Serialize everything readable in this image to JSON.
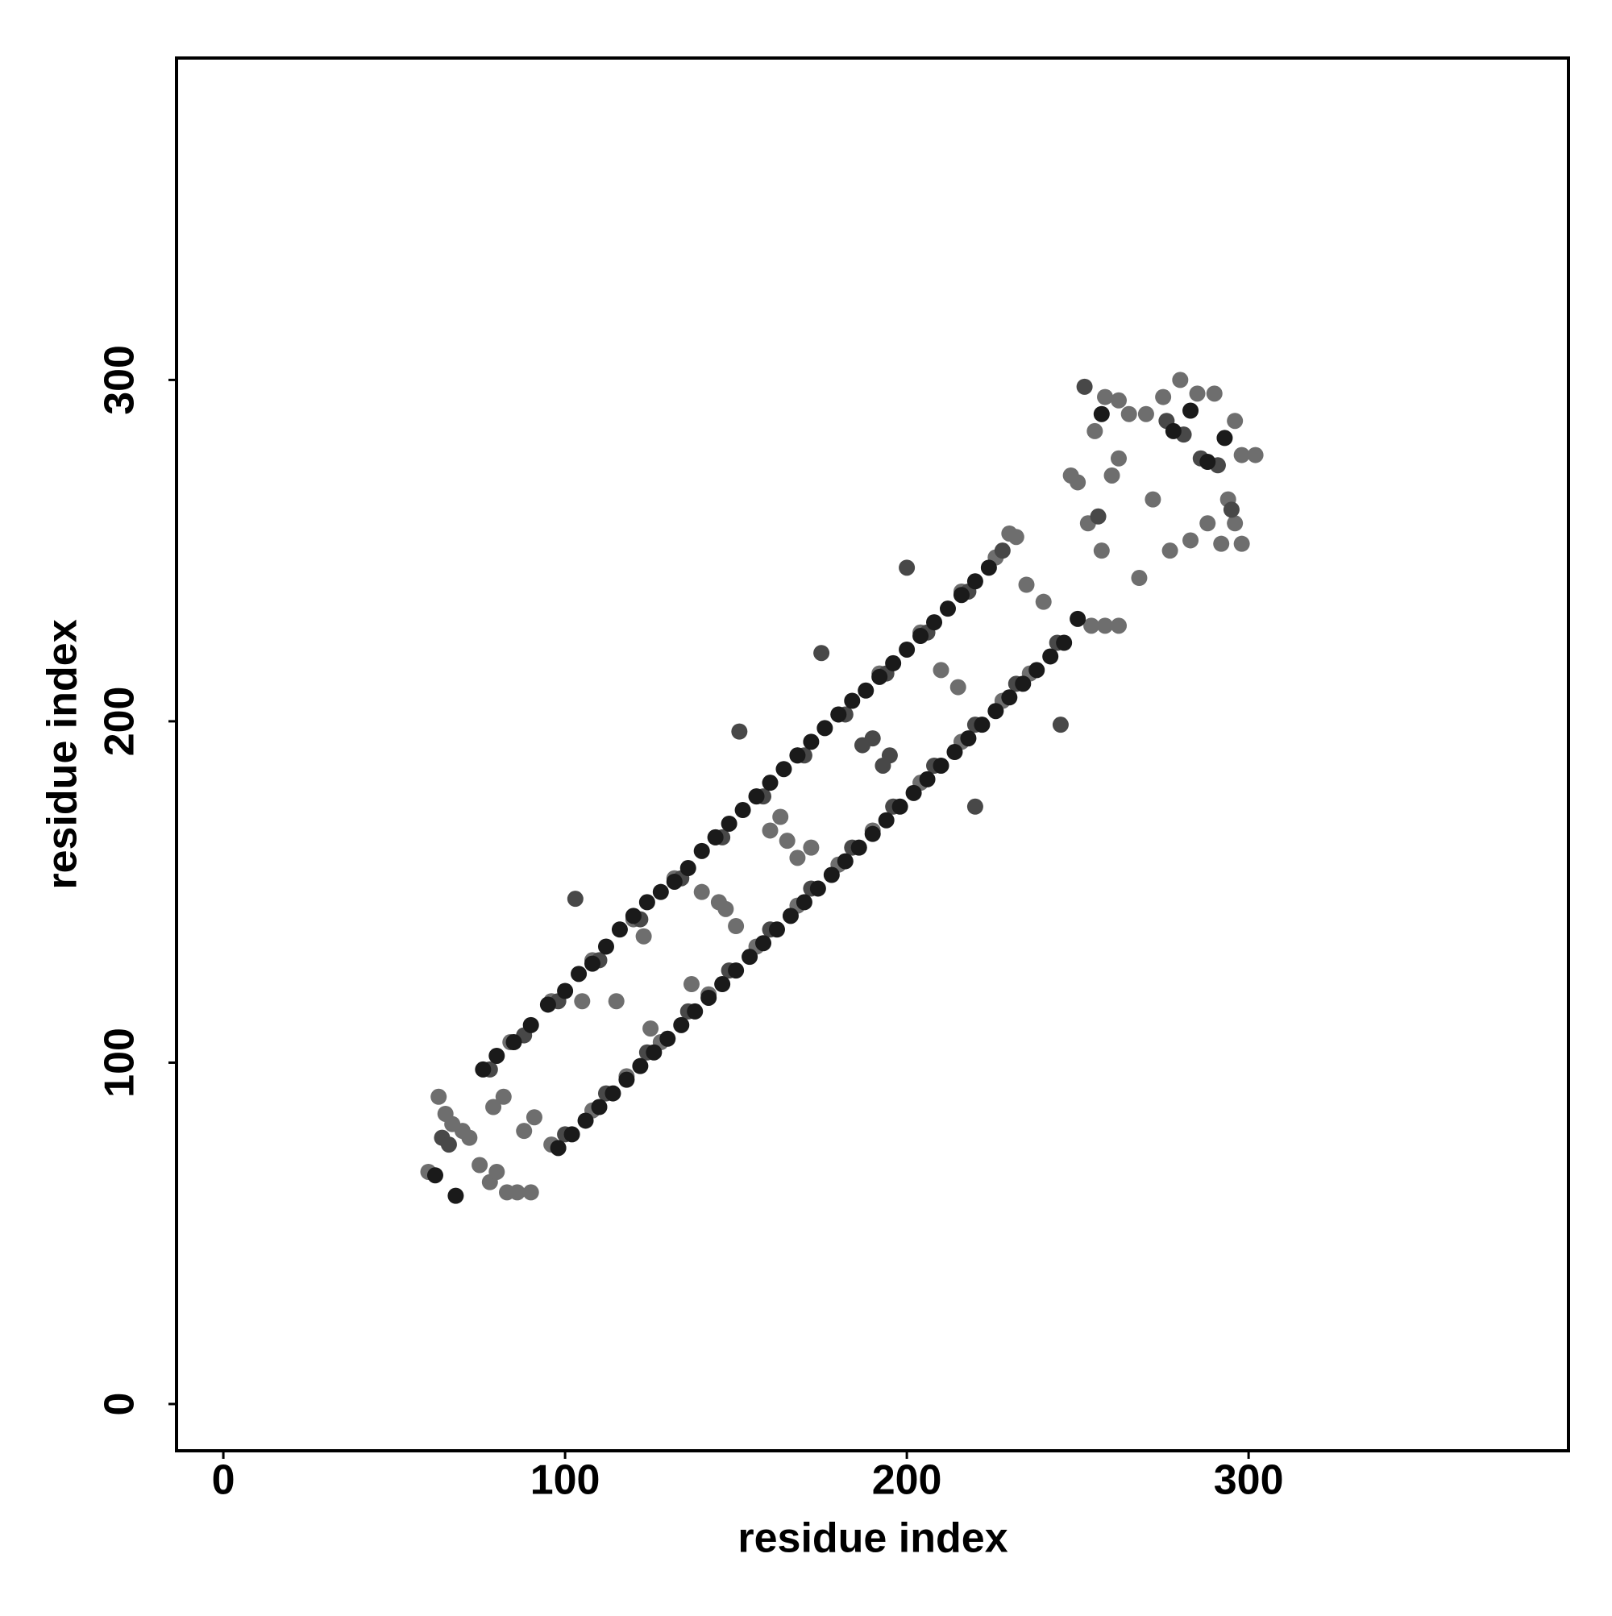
{
  "chart_data": {
    "type": "scatter",
    "xlabel": "residue index",
    "ylabel": "residue index",
    "xlim": [
      -13.7,
      393.6
    ],
    "ylim": [
      -13.7,
      394.3
    ],
    "xticks": [
      0,
      100,
      200,
      300
    ],
    "yticks": [
      0,
      100,
      200,
      300
    ],
    "series": [
      {
        "color": "#6e6e6e",
        "x": [
          60,
          63,
          65,
          67,
          70,
          72,
          75,
          78,
          80,
          83,
          86,
          90,
          82,
          79,
          88,
          91,
          96,
          105,
          115,
          125,
          123,
          137,
          140,
          150,
          145,
          147,
          160,
          168,
          165,
          163,
          172,
          210,
          215,
          230,
          240,
          235,
          250,
          255,
          258,
          262,
          265,
          270,
          275,
          280,
          285,
          290,
          296,
          298,
          302,
          294,
          296,
          298,
          292,
          288,
          272,
          268,
          277,
          283,
          260,
          262,
          248,
          253,
          257,
          262,
          258,
          254,
          84,
          96,
          108,
          120,
          132,
          144,
          156,
          168,
          180,
          192,
          204,
          216,
          226,
          232,
          108,
          118,
          128,
          142,
          156,
          168,
          180,
          190,
          204,
          216,
          228,
          236
        ],
        "values": [
          68,
          90,
          85,
          82,
          80,
          78,
          70,
          65,
          68,
          62,
          62,
          62,
          90,
          87,
          80,
          84,
          76,
          118,
          118,
          110,
          137,
          123,
          150,
          140,
          147,
          145,
          168,
          160,
          165,
          172,
          163,
          215,
          210,
          255,
          235,
          240,
          270,
          285,
          295,
          294,
          290,
          290,
          295,
          300,
          296,
          296,
          288,
          278,
          278,
          265,
          258,
          252,
          252,
          258,
          265,
          242,
          250,
          253,
          272,
          277,
          272,
          258,
          250,
          228,
          228,
          228,
          106,
          118,
          130,
          142,
          154,
          166,
          178,
          190,
          202,
          214,
          226,
          238,
          248,
          254,
          86,
          96,
          106,
          120,
          134,
          146,
          158,
          168,
          182,
          194,
          206,
          214
        ]
      },
      {
        "color": "#484848",
        "x": [
          78,
          88,
          98,
          110,
          122,
          134,
          146,
          158,
          170,
          182,
          194,
          206,
          218,
          228,
          100,
          112,
          124,
          136,
          148,
          160,
          172,
          184,
          196,
          208,
          220,
          232,
          244,
          103,
          151,
          200,
          245,
          175,
          220,
          190,
          195,
          193,
          187,
          64,
          66,
          276,
          281,
          286,
          291,
          295,
          252,
          256
        ],
        "values": [
          98,
          108,
          118,
          130,
          142,
          154,
          166,
          178,
          190,
          202,
          214,
          226,
          238,
          250,
          79,
          91,
          103,
          115,
          127,
          139,
          151,
          163,
          175,
          187,
          199,
          211,
          223,
          148,
          197,
          245,
          199,
          220,
          175,
          195,
          190,
          187,
          193,
          78,
          76,
          288,
          284,
          277,
          275,
          262,
          298,
          260
        ]
      },
      {
        "color": "#1a1a1a",
        "x": [
          76,
          80,
          85,
          90,
          95,
          100,
          104,
          108,
          112,
          116,
          120,
          124,
          128,
          132,
          136,
          140,
          144,
          148,
          152,
          156,
          160,
          164,
          168,
          172,
          176,
          180,
          184,
          188,
          192,
          196,
          200,
          204,
          208,
          212,
          216,
          220,
          224,
          98,
          102,
          106,
          110,
          114,
          118,
          122,
          126,
          130,
          134,
          138,
          142,
          146,
          150,
          154,
          158,
          162,
          166,
          170,
          174,
          178,
          182,
          186,
          190,
          194,
          198,
          202,
          206,
          210,
          214,
          218,
          222,
          226,
          230,
          234,
          238,
          242,
          246,
          62,
          68,
          278,
          283,
          288,
          293,
          257,
          250
        ],
        "values": [
          98,
          102,
          106,
          111,
          117,
          121,
          126,
          129,
          134,
          139,
          143,
          147,
          150,
          153,
          157,
          162,
          166,
          170,
          174,
          178,
          182,
          186,
          190,
          194,
          198,
          202,
          206,
          209,
          213,
          217,
          221,
          225,
          229,
          233,
          237,
          241,
          245,
          75,
          79,
          83,
          87,
          91,
          95,
          99,
          103,
          107,
          111,
          115,
          119,
          123,
          127,
          131,
          135,
          139,
          143,
          147,
          151,
          155,
          159,
          163,
          167,
          171,
          175,
          179,
          183,
          187,
          191,
          195,
          199,
          203,
          207,
          211,
          215,
          219,
          223,
          67,
          61,
          285,
          291,
          276,
          283,
          290,
          230
        ]
      }
    ]
  }
}
